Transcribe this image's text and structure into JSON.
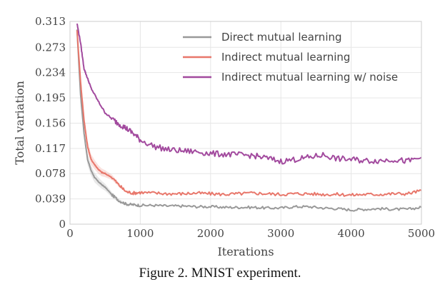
{
  "caption": "Figure 2. MNIST experiment.",
  "chart_data": {
    "type": "line",
    "title": "",
    "xlabel": "Iterations",
    "ylabel": "Total variation",
    "xlim": [
      0,
      5000
    ],
    "ylim": [
      0,
      0.313
    ],
    "xticks": [
      0,
      1000,
      2000,
      3000,
      4000,
      5000
    ],
    "yticks": [
      0,
      0.039,
      0.078,
      0.117,
      0.156,
      0.195,
      0.234,
      0.273,
      0.313
    ],
    "grid": true,
    "legend_position": "top-right",
    "series": [
      {
        "name": "Direct mutual learning",
        "color": "#999999",
        "x": [
          100,
          150,
          200,
          250,
          300,
          350,
          400,
          450,
          500,
          600,
          700,
          800,
          900,
          1000,
          1200,
          1400,
          1600,
          1800,
          2000,
          2200,
          2400,
          2600,
          2800,
          3000,
          3200,
          3400,
          3600,
          3800,
          4000,
          4200,
          4400,
          4600,
          4800,
          5000
        ],
        "y": [
          0.3,
          0.2,
          0.14,
          0.1,
          0.083,
          0.072,
          0.066,
          0.061,
          0.057,
          0.045,
          0.036,
          0.031,
          0.03,
          0.029,
          0.029,
          0.028,
          0.028,
          0.027,
          0.027,
          0.026,
          0.026,
          0.026,
          0.025,
          0.025,
          0.027,
          0.027,
          0.025,
          0.024,
          0.022,
          0.023,
          0.024,
          0.023,
          0.023,
          0.026
        ]
      },
      {
        "name": "Indirect mutual learning",
        "color": "#e8776b",
        "x": [
          100,
          150,
          200,
          250,
          300,
          350,
          400,
          450,
          500,
          600,
          700,
          800,
          900,
          1000,
          1200,
          1400,
          1600,
          1800,
          2000,
          2200,
          2400,
          2600,
          2800,
          3000,
          3200,
          3400,
          3600,
          3800,
          4000,
          4200,
          4400,
          4600,
          4800,
          5000
        ],
        "y": [
          0.3,
          0.22,
          0.16,
          0.12,
          0.1,
          0.092,
          0.085,
          0.08,
          0.078,
          0.072,
          0.06,
          0.05,
          0.048,
          0.049,
          0.048,
          0.047,
          0.047,
          0.048,
          0.047,
          0.046,
          0.047,
          0.048,
          0.047,
          0.046,
          0.047,
          0.047,
          0.046,
          0.046,
          0.045,
          0.046,
          0.046,
          0.047,
          0.047,
          0.052
        ]
      },
      {
        "name": "Indirect mutual learning w/ noise",
        "color": "#a24a9e",
        "x": [
          100,
          150,
          200,
          250,
          300,
          400,
          500,
          600,
          700,
          800,
          900,
          1000,
          1200,
          1400,
          1600,
          1800,
          2000,
          2200,
          2400,
          2600,
          2800,
          3000,
          3200,
          3400,
          3600,
          3800,
          4000,
          4200,
          4400,
          4600,
          4800,
          5000
        ],
        "y": [
          0.31,
          0.28,
          0.24,
          0.225,
          0.21,
          0.19,
          0.172,
          0.162,
          0.155,
          0.148,
          0.14,
          0.13,
          0.12,
          0.115,
          0.113,
          0.112,
          0.109,
          0.108,
          0.107,
          0.106,
          0.102,
          0.097,
          0.1,
          0.103,
          0.107,
          0.101,
          0.1,
          0.098,
          0.098,
          0.1,
          0.097,
          0.103
        ]
      }
    ]
  }
}
